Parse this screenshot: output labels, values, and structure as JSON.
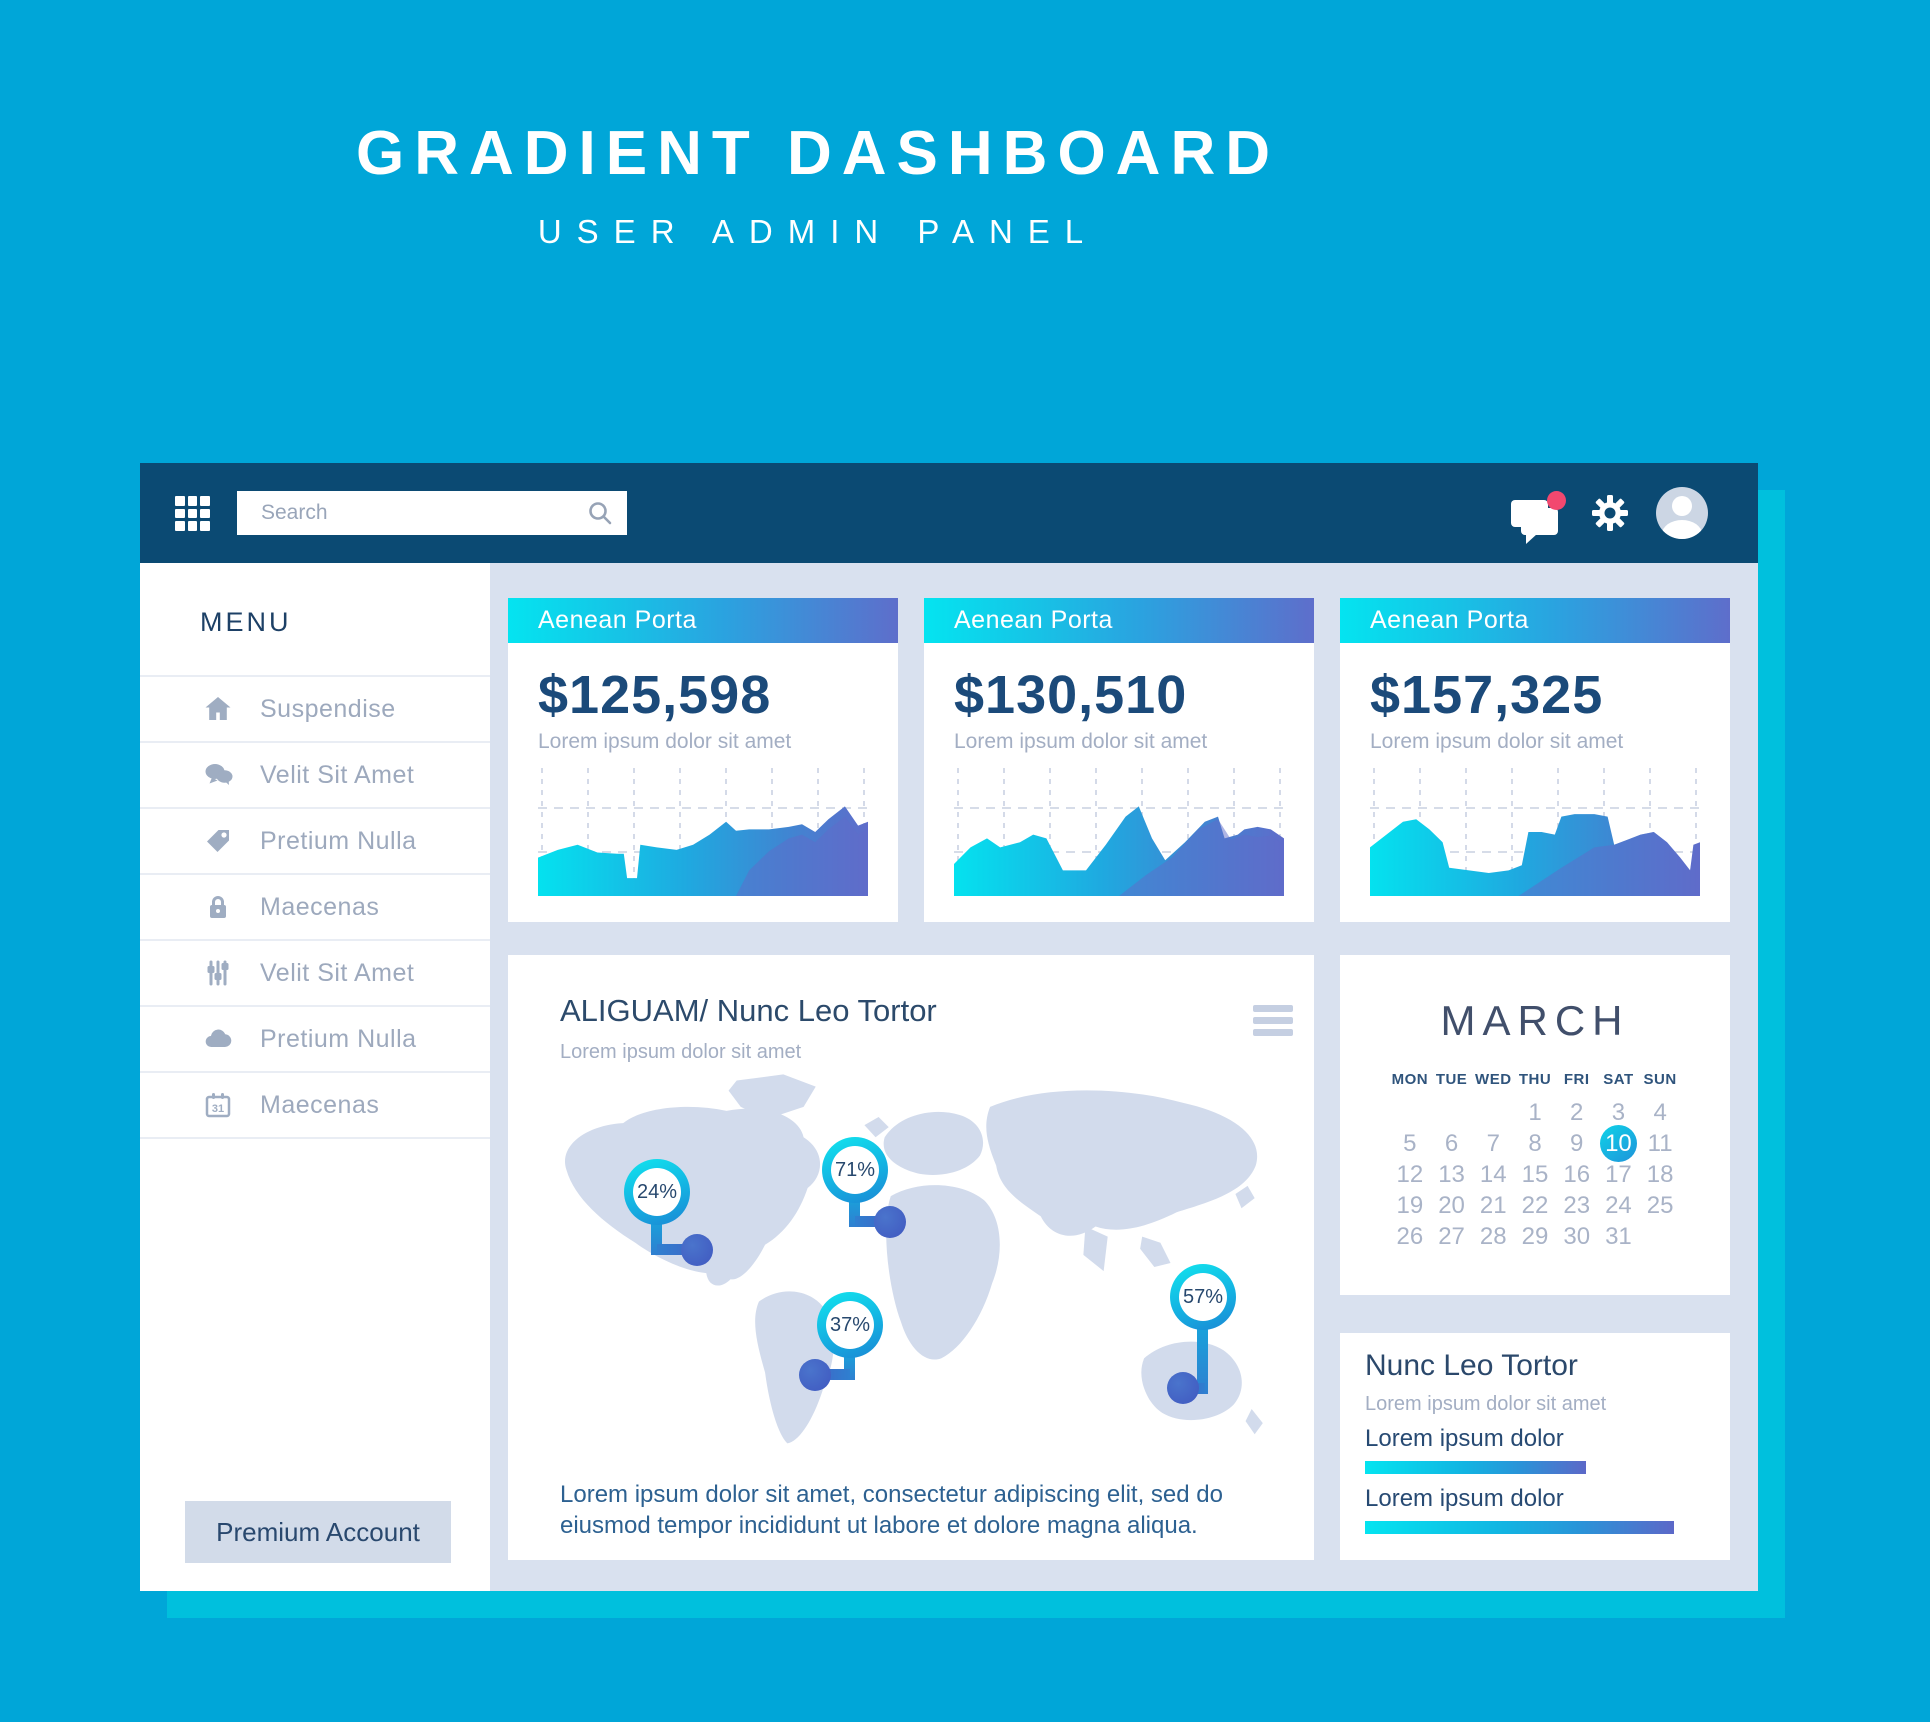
{
  "page": {
    "title": "GRADIENT DASHBOARD",
    "subtitle": "USER ADMIN PANEL"
  },
  "topbar": {
    "search_placeholder": "Search"
  },
  "sidebar": {
    "menu_label": "MENU",
    "items": [
      {
        "label": "Suspendise",
        "icon": "home-icon"
      },
      {
        "label": "Velit Sit Amet",
        "icon": "chat-bubbles-icon"
      },
      {
        "label": "Pretium Nulla",
        "icon": "tag-icon"
      },
      {
        "label": "Maecenas",
        "icon": "lock-icon"
      },
      {
        "label": "Velit Sit Amet",
        "icon": "sliders-icon"
      },
      {
        "label": "Pretium Nulla",
        "icon": "cloud-icon"
      },
      {
        "label": "Maecenas",
        "icon": "calendar-icon",
        "icon_text": "31"
      }
    ],
    "premium_button": "Premium Account"
  },
  "stat_cards": [
    {
      "header": "Aenean Porta",
      "value": "$125,598",
      "subtitle": "Lorem ipsum dolor sit amet"
    },
    {
      "header": "Aenean Porta",
      "value": "$130,510",
      "subtitle": "Lorem ipsum dolor sit amet"
    },
    {
      "header": "Aenean Porta",
      "value": "$157,325",
      "subtitle": "Lorem ipsum dolor sit amet"
    }
  ],
  "map_card": {
    "title": "ALIGUAM/ Nunc Leo Tortor",
    "subtitle": "Lorem ipsum dolor sit amet",
    "markers": [
      {
        "value": "24%"
      },
      {
        "value": "71%"
      },
      {
        "value": "37%"
      },
      {
        "value": "57%"
      }
    ],
    "description": "Lorem ipsum dolor sit amet, consectetur adipiscing elit, sed do eiusmod tempor incididunt ut labore et dolore magna aliqua."
  },
  "calendar": {
    "month": "MARCH",
    "weekdays": [
      "MON",
      "TUE",
      "WED",
      "THU",
      "FRI",
      "SAT",
      "SUN"
    ],
    "weeks": [
      [
        "",
        "",
        "",
        "1",
        "2",
        "3",
        "4"
      ],
      [
        "5",
        "6",
        "7",
        "8",
        "9",
        "10",
        "11"
      ],
      [
        "12",
        "13",
        "14",
        "15",
        "16",
        "17",
        "18"
      ],
      [
        "19",
        "20",
        "21",
        "22",
        "23",
        "24",
        "25"
      ],
      [
        "26",
        "27",
        "28",
        "29",
        "30",
        "31",
        ""
      ]
    ],
    "selected": "10"
  },
  "progress_card": {
    "title": "Nunc Leo Tortor",
    "subtitle": "Lorem ipsum dolor sit amet",
    "bars": [
      {
        "label": "Lorem ipsum dolor",
        "percent": 65
      },
      {
        "label": "Lorem ipsum dolor",
        "percent": 91
      }
    ]
  },
  "colors": {
    "background": "#00a6d8",
    "window_shadow": "#00c0dd",
    "topbar": "#0b4a73",
    "gradient_start": "#04e4f0",
    "gradient_end": "#5e6ecb",
    "notification": "#f2486f",
    "content_bg": "#d9e1ef",
    "navy_text": "#1b4a7a",
    "muted_text": "#a3aec3"
  },
  "chart_data": [
    {
      "type": "area",
      "card": "Aenean Porta",
      "card_value": "$125,598",
      "ylim": [
        0,
        100
      ],
      "grid": "dashed",
      "points": [
        [
          0,
          30
        ],
        [
          6,
          36
        ],
        [
          12,
          40
        ],
        [
          18,
          34
        ],
        [
          24,
          33
        ],
        [
          26,
          33
        ],
        [
          27,
          14
        ],
        [
          30,
          14
        ],
        [
          31,
          40
        ],
        [
          36,
          38
        ],
        [
          42,
          36
        ],
        [
          47,
          40
        ],
        [
          52,
          48
        ],
        [
          57,
          58
        ],
        [
          60,
          51
        ],
        [
          64,
          52
        ],
        [
          70,
          52
        ],
        [
          76,
          54
        ],
        [
          80,
          56
        ],
        [
          84,
          50
        ],
        [
          88,
          60
        ],
        [
          93,
          70
        ],
        [
          97,
          55
        ],
        [
          100,
          58
        ]
      ],
      "points2": [
        [
          60,
          0
        ],
        [
          64,
          20
        ],
        [
          70,
          35
        ],
        [
          76,
          45
        ],
        [
          80,
          48
        ],
        [
          84,
          42
        ],
        [
          88,
          52
        ],
        [
          93,
          62
        ],
        [
          97,
          48
        ],
        [
          100,
          52
        ]
      ]
    },
    {
      "type": "area",
      "card": "Aenean Porta",
      "card_value": "$130,510",
      "ylim": [
        0,
        100
      ],
      "grid": "dashed",
      "points": [
        [
          0,
          25
        ],
        [
          5,
          38
        ],
        [
          10,
          45
        ],
        [
          14,
          38
        ],
        [
          20,
          42
        ],
        [
          24,
          48
        ],
        [
          28,
          45
        ],
        [
          33,
          20
        ],
        [
          40,
          20
        ],
        [
          46,
          40
        ],
        [
          52,
          62
        ],
        [
          56,
          70
        ],
        [
          60,
          45
        ],
        [
          64,
          28
        ],
        [
          70,
          42
        ],
        [
          76,
          58
        ],
        [
          80,
          62
        ],
        [
          82,
          45
        ],
        [
          86,
          48
        ],
        [
          88,
          52
        ],
        [
          92,
          54
        ],
        [
          96,
          52
        ],
        [
          100,
          45
        ]
      ],
      "points2": [
        [
          50,
          0
        ],
        [
          58,
          16
        ],
        [
          66,
          30
        ],
        [
          74,
          52
        ],
        [
          80,
          60
        ],
        [
          84,
          44
        ],
        [
          88,
          48
        ],
        [
          92,
          46
        ],
        [
          96,
          47
        ],
        [
          100,
          40
        ]
      ]
    },
    {
      "type": "area",
      "card": "Aenean Porta",
      "card_value": "$157,325",
      "ylim": [
        0,
        100
      ],
      "grid": "dashed",
      "points": [
        [
          0,
          38
        ],
        [
          6,
          50
        ],
        [
          10,
          58
        ],
        [
          14,
          60
        ],
        [
          18,
          52
        ],
        [
          22,
          42
        ],
        [
          24,
          22
        ],
        [
          30,
          20
        ],
        [
          36,
          18
        ],
        [
          42,
          20
        ],
        [
          46,
          24
        ],
        [
          48,
          50
        ],
        [
          52,
          50
        ],
        [
          56,
          48
        ],
        [
          58,
          62
        ],
        [
          62,
          64
        ],
        [
          68,
          64
        ],
        [
          72,
          62
        ],
        [
          74,
          40
        ],
        [
          78,
          44
        ],
        [
          82,
          48
        ],
        [
          86,
          50
        ],
        [
          90,
          42
        ],
        [
          94,
          30
        ],
        [
          97,
          20
        ],
        [
          98,
          40
        ],
        [
          100,
          42
        ]
      ],
      "points2": [
        [
          45,
          0
        ],
        [
          58,
          22
        ],
        [
          68,
          38
        ],
        [
          74,
          40
        ],
        [
          78,
          44
        ],
        [
          82,
          48
        ],
        [
          86,
          50
        ],
        [
          90,
          42
        ],
        [
          94,
          30
        ],
        [
          97,
          20
        ],
        [
          98,
          35
        ],
        [
          100,
          38
        ]
      ]
    },
    {
      "type": "bar",
      "card": "Nunc Leo Tortor",
      "labels": [
        "Lorem ipsum dolor",
        "Lorem ipsum dolor"
      ],
      "values": [
        65,
        91
      ],
      "unit": "%"
    }
  ]
}
